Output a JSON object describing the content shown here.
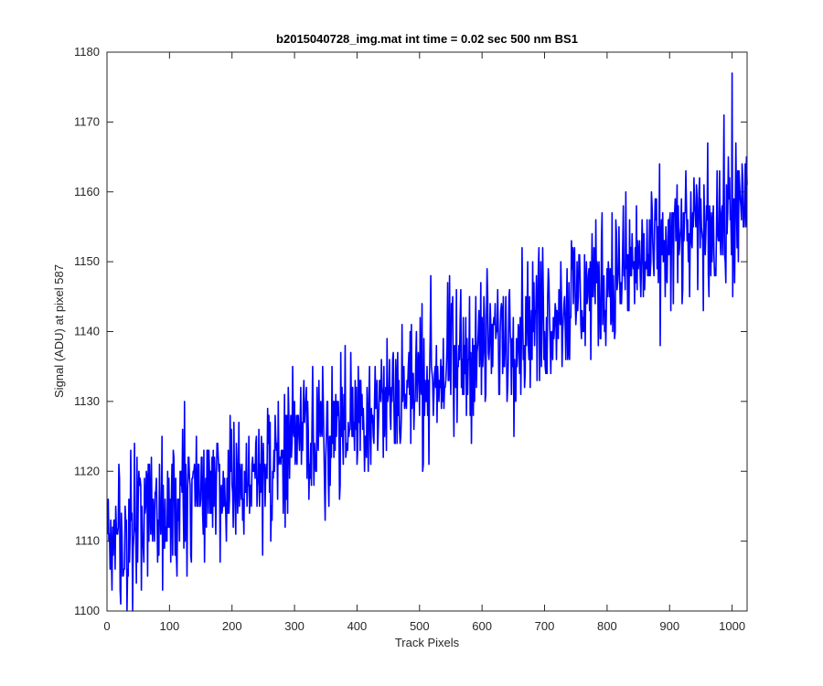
{
  "chart_data": {
    "type": "line",
    "title": "b2015040728_img.mat int time = 0.02 sec  500 nm BS1",
    "xlabel": "Track Pixels",
    "ylabel": "Signal (ADU) at pixel 587",
    "xlim": [
      0,
      1024
    ],
    "ylim": [
      1100,
      1180
    ],
    "xticks": [
      0,
      100,
      200,
      300,
      400,
      500,
      600,
      700,
      800,
      900,
      1000
    ],
    "yticks": [
      1100,
      1110,
      1120,
      1130,
      1140,
      1150,
      1160,
      1170,
      1180
    ],
    "grid": false,
    "series": [
      {
        "color": "#0000ff",
        "trend": {
          "x": [
            0,
            1024
          ],
          "y": [
            1109,
            1158
          ]
        },
        "noise_amplitude": 5.5,
        "num_points": 1024,
        "x_start": 1,
        "x_end": 1024,
        "visible_extremes": [
          {
            "x": 8,
            "y": 1103
          },
          {
            "x": 555,
            "y": 1125
          },
          {
            "x": 1000,
            "y": 1177
          },
          {
            "x": 1010,
            "y": 1150
          }
        ]
      }
    ]
  }
}
